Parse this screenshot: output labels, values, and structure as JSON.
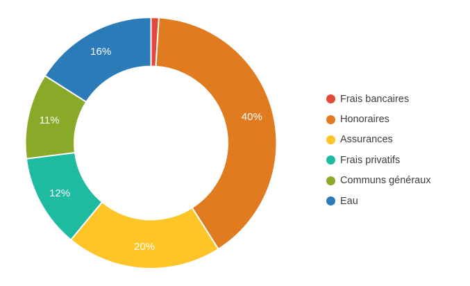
{
  "chart_data": {
    "type": "pie",
    "subtype": "donut",
    "title": "",
    "categories": [
      "Frais bancaires",
      "Honoraires",
      "Assurances",
      "Frais privatifs",
      "Communs généraux",
      "Eau"
    ],
    "values": [
      1,
      40,
      20,
      12,
      11,
      16
    ],
    "series": [
      {
        "label": "Frais bancaires",
        "value": 1,
        "percent_label": "",
        "color": "#E2493D"
      },
      {
        "label": "Honoraires",
        "value": 40,
        "percent_label": "40%",
        "color": "#E07B20"
      },
      {
        "label": "Assurances",
        "value": 20,
        "percent_label": "20%",
        "color": "#FDC527"
      },
      {
        "label": "Frais privatifs",
        "value": 12,
        "percent_label": "12%",
        "color": "#1EBBA0"
      },
      {
        "label": "Communs généraux",
        "value": 11,
        "percent_label": "11%",
        "color": "#89AA28"
      },
      {
        "label": "Eau",
        "value": 16,
        "percent_label": "16%",
        "color": "#2B7BB9"
      }
    ],
    "direction": "clockwise",
    "start_angle_deg": 0,
    "inner_radius_ratio": 0.61,
    "legend_position": "right",
    "percent_label_color": "#ffffff",
    "separator_color": "#ffffff",
    "background_color": "#ffffff",
    "legend_text_color": "#3d3d3d"
  }
}
